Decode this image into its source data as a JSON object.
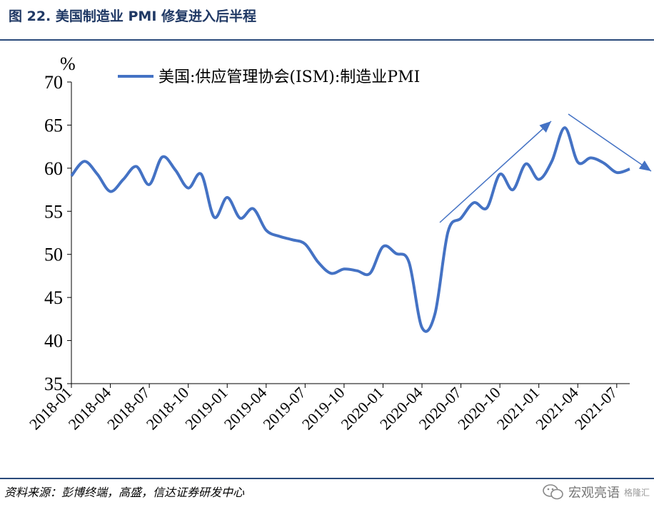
{
  "title": "图 22. 美国制造业 PMI 修复进入后半程",
  "source": "资料来源：彭博终端，高盛，信达证券研发中心",
  "watermark": {
    "main": "宏观亮语",
    "sub": "格隆汇"
  },
  "colors": {
    "series": "#4472c4",
    "rule": "#2a4a7a",
    "title": "#1f3864"
  },
  "chart_data": {
    "type": "line",
    "title": "",
    "unit": "%",
    "ylim": [
      35,
      70
    ],
    "yticks": [
      35,
      40,
      45,
      50,
      55,
      60,
      65,
      70
    ],
    "xtick_labels": [
      "2018-01",
      "2018-04",
      "2018-07",
      "2018-10",
      "2019-01",
      "2019-04",
      "2019-07",
      "2019-10",
      "2020-01",
      "2020-04",
      "2020-07",
      "2020-10",
      "2021-01",
      "2021-04",
      "2021-07"
    ],
    "legend": "美国:供应管理协会(ISM):制造业PMI",
    "series": [
      {
        "name": "美国:供应管理协会(ISM):制造业PMI",
        "x": [
          "2018-01",
          "2018-02",
          "2018-03",
          "2018-04",
          "2018-05",
          "2018-06",
          "2018-07",
          "2018-08",
          "2018-09",
          "2018-10",
          "2018-11",
          "2018-12",
          "2019-01",
          "2019-02",
          "2019-03",
          "2019-04",
          "2019-05",
          "2019-06",
          "2019-07",
          "2019-08",
          "2019-09",
          "2019-10",
          "2019-11",
          "2019-12",
          "2020-01",
          "2020-02",
          "2020-03",
          "2020-04",
          "2020-05",
          "2020-06",
          "2020-07",
          "2020-08",
          "2020-09",
          "2020-10",
          "2020-11",
          "2020-12",
          "2021-01",
          "2021-02",
          "2021-03",
          "2021-04",
          "2021-05",
          "2021-06",
          "2021-07",
          "2021-08"
        ],
        "values": [
          59.1,
          60.8,
          59.3,
          57.3,
          58.7,
          60.2,
          58.1,
          61.3,
          59.8,
          57.7,
          59.3,
          54.3,
          56.6,
          54.2,
          55.3,
          52.8,
          52.1,
          51.7,
          51.2,
          49.1,
          47.8,
          48.3,
          48.1,
          47.8,
          50.9,
          50.1,
          49.1,
          41.5,
          43.1,
          52.6,
          54.2,
          56.0,
          55.4,
          59.3,
          57.5,
          60.5,
          58.7,
          60.8,
          64.7,
          60.7,
          61.2,
          60.6,
          59.5,
          59.9
        ]
      }
    ],
    "annotations": [
      "up-trend-arrow",
      "down-trend-arrow"
    ]
  }
}
